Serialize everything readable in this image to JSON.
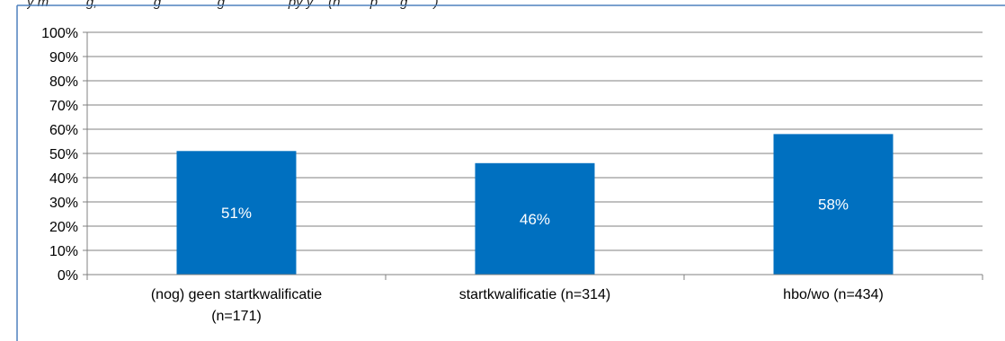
{
  "caption_fragment": "y m          g,               g               g                 py y    (n        p      g       )",
  "colors": {
    "bar": "#0070C0",
    "grid": "#808080",
    "frame": "#4F81BD",
    "bar_label": "#ffffff",
    "text": "#000000"
  },
  "chart_data": {
    "type": "bar",
    "categories": [
      [
        "(nog) geen startkwalificatie",
        "(n=171)"
      ],
      [
        "startkwalificatie (n=314)"
      ],
      [
        "hbo/wo (n=434)"
      ]
    ],
    "values": [
      51,
      46,
      58
    ],
    "data_labels": [
      "51%",
      "46%",
      "58%"
    ],
    "y_ticks": [
      "0%",
      "10%",
      "20%",
      "30%",
      "40%",
      "50%",
      "60%",
      "70%",
      "80%",
      "90%",
      "100%"
    ],
    "ylim": [
      0,
      100
    ],
    "grid": true,
    "legend": "none"
  }
}
